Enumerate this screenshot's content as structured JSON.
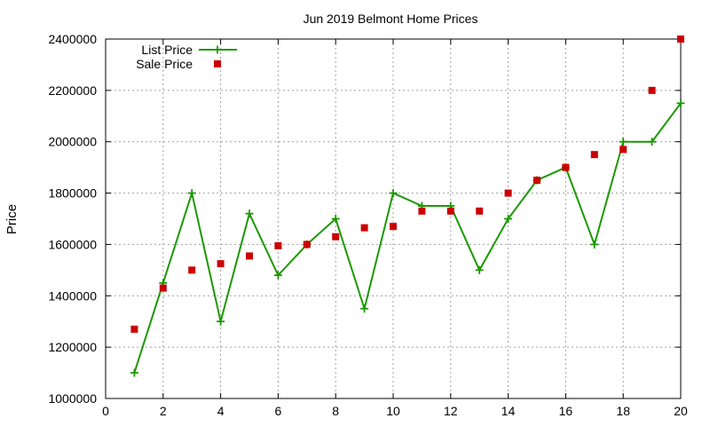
{
  "colors": {
    "list_price": "#1a9900",
    "sale_price": "#cc0000",
    "grid": "#a0a0a0"
  },
  "chart_data": {
    "type": "line",
    "title": "Jun 2019 Belmont Home Prices",
    "xlabel": "",
    "ylabel": "Price",
    "xlim": [
      0,
      20
    ],
    "ylim": [
      1000000,
      2400000
    ],
    "x_ticks": [
      "0",
      "2",
      "4",
      "6",
      "8",
      "10",
      "12",
      "14",
      "16",
      "18",
      "20"
    ],
    "y_ticks": [
      "1000000",
      "1200000",
      "1400000",
      "1600000",
      "1800000",
      "2000000",
      "2200000",
      "2400000"
    ],
    "grid": true,
    "legend_position": "top-left",
    "series": [
      {
        "name": "List Price",
        "style": "line-with-plus-markers",
        "x": [
          1,
          2,
          3,
          4,
          5,
          6,
          7,
          8,
          9,
          10,
          11,
          12,
          13,
          14,
          15,
          16,
          17,
          18,
          19,
          20
        ],
        "values": [
          1100000,
          1450000,
          1800000,
          1300000,
          1720000,
          1480000,
          1600000,
          1700000,
          1350000,
          1800000,
          1750000,
          1750000,
          1500000,
          1700000,
          1850000,
          1900000,
          1600000,
          2000000,
          2000000,
          2150000
        ]
      },
      {
        "name": "Sale Price",
        "style": "square-markers",
        "x": [
          1,
          2,
          3,
          4,
          5,
          6,
          7,
          8,
          9,
          10,
          11,
          12,
          13,
          14,
          15,
          16,
          17,
          18,
          19,
          20
        ],
        "values": [
          1270000,
          1430000,
          1500000,
          1525000,
          1555000,
          1595000,
          1600000,
          1630000,
          1665000,
          1670000,
          1730000,
          1730000,
          1730000,
          1800000,
          1850000,
          1900000,
          1950000,
          1970000,
          2200000,
          2400000
        ]
      }
    ]
  }
}
